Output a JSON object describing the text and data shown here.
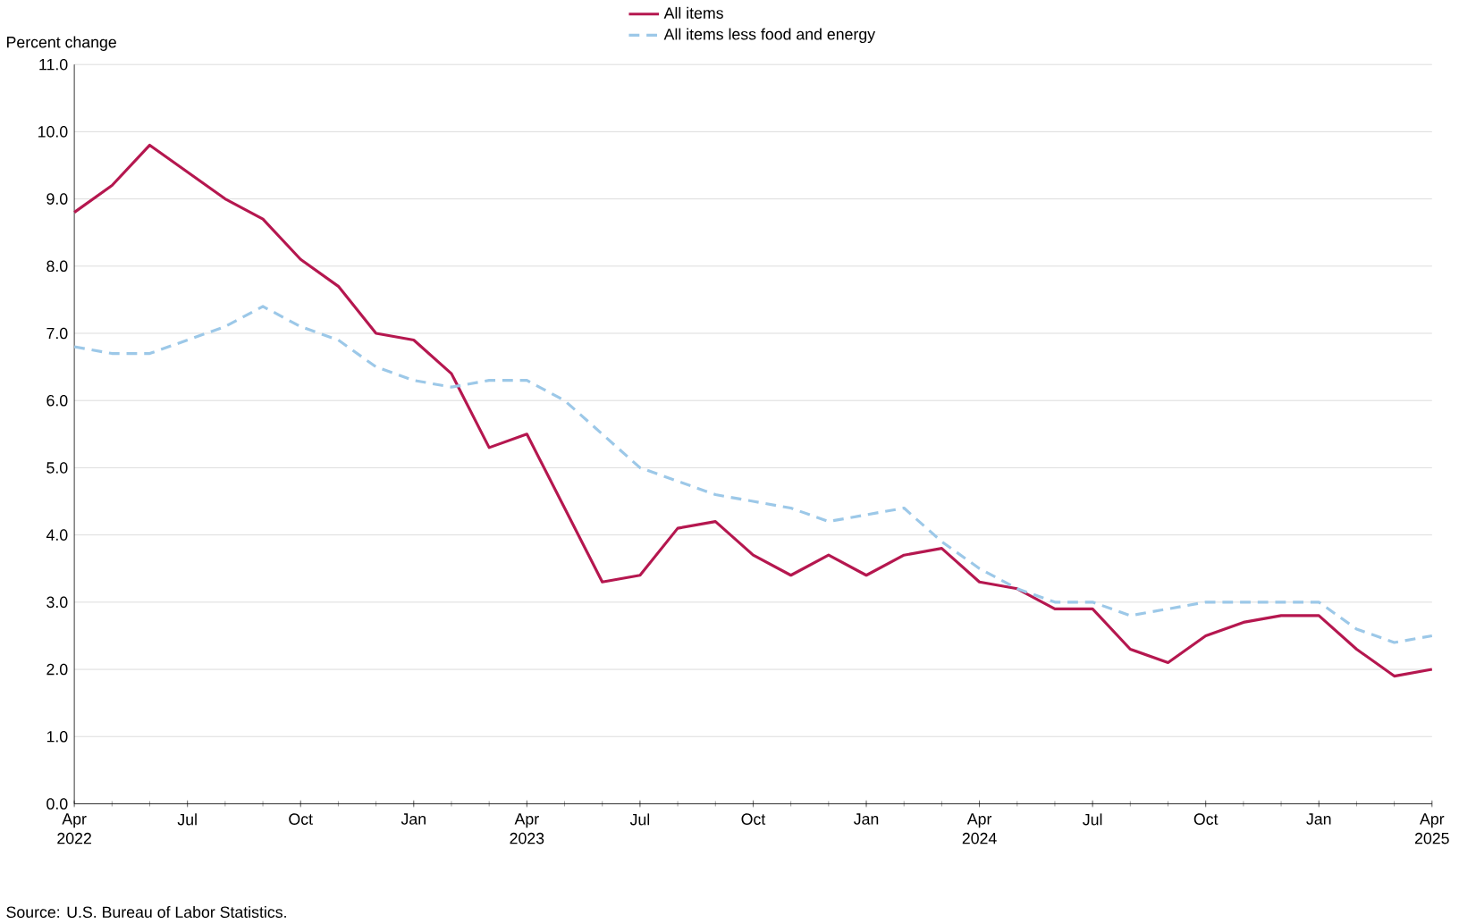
{
  "chart_data": {
    "type": "line",
    "ylabel": "Percent change",
    "categories": [
      "Apr 2022",
      null,
      null,
      "Jul",
      null,
      null,
      "Oct",
      null,
      null,
      "Jan",
      null,
      null,
      "Apr 2023",
      null,
      null,
      "Jul",
      null,
      null,
      "Oct",
      null,
      null,
      "Jan",
      null,
      null,
      "Apr 2024",
      null,
      null,
      "Jul",
      null,
      null,
      "Oct",
      null,
      null,
      "Jan",
      null,
      null,
      "Apr 2025"
    ],
    "series": [
      {
        "name": "All items",
        "color": "#b5174f",
        "line_style": "solid",
        "values": [
          8.8,
          9.2,
          9.8,
          9.4,
          9.0,
          8.7,
          8.1,
          7.7,
          7.0,
          6.9,
          6.4,
          5.3,
          5.5,
          4.4,
          3.3,
          3.4,
          4.1,
          4.2,
          3.7,
          3.4,
          3.7,
          3.4,
          3.7,
          3.8,
          3.3,
          3.2,
          2.9,
          2.9,
          2.3,
          2.1,
          2.5,
          2.7,
          2.8,
          2.8,
          2.3,
          1.9,
          2.0
        ]
      },
      {
        "name": "All items less food and energy",
        "color": "#9cc8e8",
        "line_style": "dashed",
        "values": [
          6.8,
          6.7,
          6.7,
          6.9,
          7.1,
          7.4,
          7.1,
          6.9,
          6.5,
          6.3,
          6.2,
          6.3,
          6.3,
          6.0,
          5.5,
          5.0,
          4.8,
          4.6,
          4.5,
          4.4,
          4.2,
          4.3,
          4.4,
          3.9,
          3.5,
          3.2,
          3.0,
          3.0,
          2.8,
          2.9,
          3.0,
          3.0,
          3.0,
          3.0,
          2.6,
          2.4,
          2.5
        ]
      }
    ],
    "ylim": [
      0,
      11
    ],
    "yticks": [
      {
        "value": 0,
        "label": "0.0"
      },
      {
        "value": 1,
        "label": "1.0"
      },
      {
        "value": 2,
        "label": "2.0"
      },
      {
        "value": 3,
        "label": "3.0"
      },
      {
        "value": 4,
        "label": "4.0"
      },
      {
        "value": 5,
        "label": "5.0"
      },
      {
        "value": 6,
        "label": "6.0"
      },
      {
        "value": 7,
        "label": "7.0"
      },
      {
        "value": 8,
        "label": "8.0"
      },
      {
        "value": 9,
        "label": "9.0"
      },
      {
        "value": 10,
        "label": "10.0"
      },
      {
        "value": 11,
        "label": "11.0"
      }
    ],
    "grid": "y",
    "legend": "top",
    "marker": "none",
    "annotations": [
      "Source: U.S. Bureau of Labor Statistics."
    ]
  }
}
